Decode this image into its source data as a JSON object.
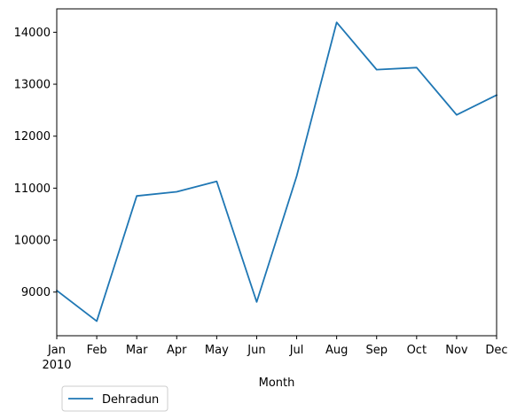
{
  "chart_data": {
    "type": "line",
    "categories": [
      "Jan",
      "Feb",
      "Mar",
      "Apr",
      "May",
      "Jun",
      "Jul",
      "Aug",
      "Sep",
      "Oct",
      "Nov",
      "Dec"
    ],
    "year_label": "2010",
    "series": [
      {
        "name": "Dehradun",
        "color": "#1f77b4",
        "values": [
          9030,
          8440,
          10850,
          10930,
          11130,
          8810,
          11230,
          14190,
          13280,
          13320,
          12410,
          12790
        ]
      }
    ],
    "xlabel": "Month",
    "ylabel": "",
    "ylim": [
      8160,
      14450
    ],
    "yticks": [
      9000,
      10000,
      11000,
      12000,
      13000,
      14000
    ],
    "grid": false,
    "legend_position": "below-left"
  }
}
